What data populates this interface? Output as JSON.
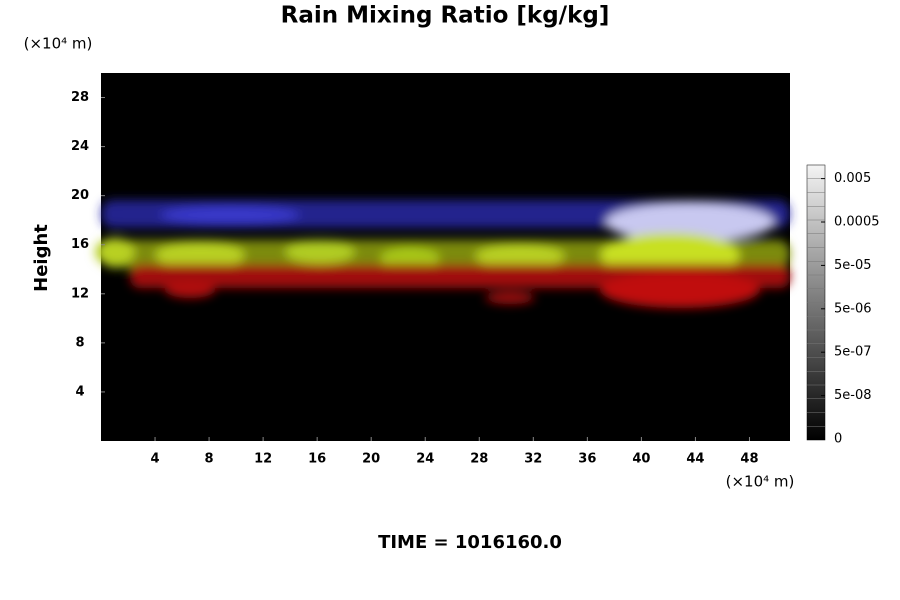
{
  "chart_data": {
    "type": "volume-render",
    "title": "Rain Mixing Ratio [kg/kg]",
    "y_unit": "(×10⁴ m)",
    "x_unit": "(×10⁴ m)",
    "ylabel": "Height",
    "xlim": [
      0,
      51
    ],
    "ylim": [
      0,
      30
    ],
    "xticks": [
      4,
      8,
      12,
      16,
      20,
      24,
      28,
      32,
      36,
      40,
      44,
      48
    ],
    "yticks": [
      4,
      8,
      12,
      16,
      20,
      24,
      28
    ],
    "colorbar_ticks": [
      0,
      {
        "value": 5e-08,
        "label": "5e-08"
      },
      {
        "value": 5e-07,
        "label": "5e-07"
      },
      {
        "value": 5e-06,
        "label": "5e-06"
      },
      {
        "value": 5e-05,
        "label": "5e-05"
      },
      0.0005,
      0.005
    ]
  },
  "time_label": "TIME = 1016160.0"
}
